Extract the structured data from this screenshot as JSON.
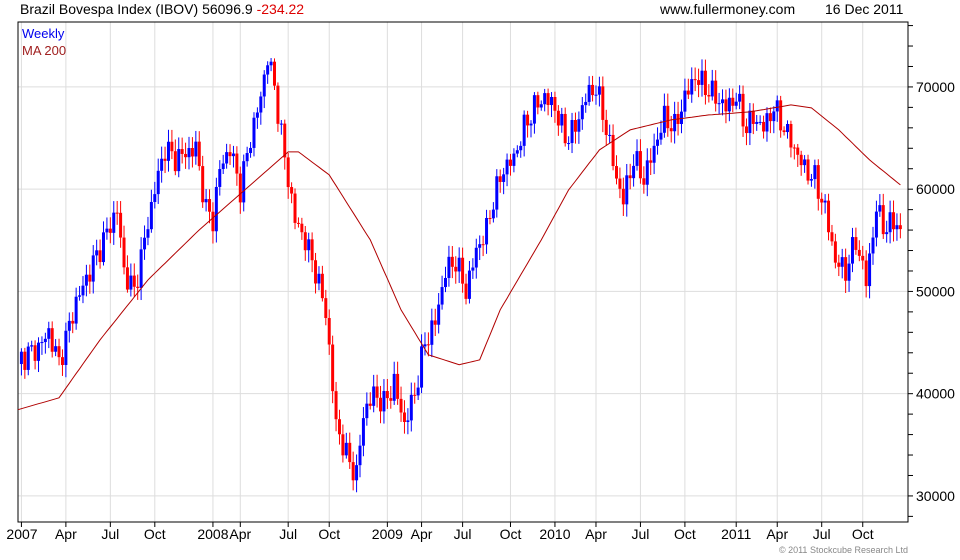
{
  "header": {
    "title": "Brazil Bovespa Index (IBOV)",
    "last": "56096.9",
    "change": "-234.22",
    "site": "www.fullermoney.com",
    "date": "16 Dec 2011"
  },
  "legend": {
    "series": "Weekly",
    "ma": "MA 200"
  },
  "copyright": "© 2011 Stockcube Research Ltd",
  "colors": {
    "up": "#0000ff",
    "down": "#ff0000",
    "ma": "#b00000",
    "grid": "#dddddd"
  },
  "chart_data": {
    "type": "candlestick",
    "title": "Brazil Bovespa Index (IBOV)",
    "frequency": "weekly",
    "ylim": [
      27450,
      76350
    ],
    "yticks": [
      30000,
      40000,
      50000,
      60000,
      70000
    ],
    "ytick_labels": [
      "30000",
      "40000",
      "50000",
      "60000",
      "70000"
    ],
    "xticks": [
      {
        "week": 1,
        "label": "2007"
      },
      {
        "week": 14,
        "label": "Apr"
      },
      {
        "week": 27,
        "label": "Jul"
      },
      {
        "week": 40,
        "label": "Oct"
      },
      {
        "week": 57,
        "label": "2008"
      },
      {
        "week": 65,
        "label": "Apr"
      },
      {
        "week": 79,
        "label": "Jul"
      },
      {
        "week": 91,
        "label": "Oct"
      },
      {
        "week": 108,
        "label": "2009"
      },
      {
        "week": 118,
        "label": "Apr"
      },
      {
        "week": 130,
        "label": "Jul"
      },
      {
        "week": 144,
        "label": "Oct"
      },
      {
        "week": 157,
        "label": "2010"
      },
      {
        "week": 169,
        "label": "Apr"
      },
      {
        "week": 182,
        "label": "Jul"
      },
      {
        "week": 195,
        "label": "Oct"
      },
      {
        "week": 210,
        "label": "2011"
      },
      {
        "week": 222,
        "label": "Apr"
      },
      {
        "week": 235,
        "label": "Jul"
      },
      {
        "week": 247,
        "label": "Oct"
      }
    ],
    "weeks_total": 260,
    "close_anchors": [
      [
        1,
        43500
      ],
      [
        6,
        44500
      ],
      [
        9,
        46000
      ],
      [
        12,
        43000
      ],
      [
        17,
        49000
      ],
      [
        21,
        52000
      ],
      [
        25,
        55000
      ],
      [
        29,
        58000
      ],
      [
        31,
        52000
      ],
      [
        34,
        50000
      ],
      [
        37,
        55000
      ],
      [
        40,
        60000
      ],
      [
        43,
        64000
      ],
      [
        46,
        63000
      ],
      [
        49,
        63500
      ],
      [
        52,
        64000
      ],
      [
        55,
        58000
      ],
      [
        57,
        57000
      ],
      [
        59,
        62000
      ],
      [
        62,
        64000
      ],
      [
        65,
        60000
      ],
      [
        68,
        65000
      ],
      [
        71,
        69000
      ],
      [
        73,
        73000
      ],
      [
        75,
        70000
      ],
      [
        78,
        63000
      ],
      [
        81,
        57000
      ],
      [
        84,
        55000
      ],
      [
        87,
        52000
      ],
      [
        90,
        48000
      ],
      [
        93,
        37000
      ],
      [
        96,
        34000
      ],
      [
        99,
        32000
      ],
      [
        101,
        38000
      ],
      [
        104,
        40000
      ],
      [
        107,
        39000
      ],
      [
        110,
        41000
      ],
      [
        113,
        37000
      ],
      [
        116,
        40000
      ],
      [
        119,
        45000
      ],
      [
        122,
        47000
      ],
      [
        125,
        52000
      ],
      [
        128,
        53000
      ],
      [
        131,
        50000
      ],
      [
        134,
        54000
      ],
      [
        137,
        56000
      ],
      [
        139,
        59000
      ],
      [
        142,
        62000
      ],
      [
        145,
        63000
      ],
      [
        148,
        66000
      ],
      [
        151,
        68000
      ],
      [
        154,
        69000
      ],
      [
        157,
        68000
      ],
      [
        160,
        65000
      ],
      [
        163,
        66000
      ],
      [
        166,
        69000
      ],
      [
        169,
        70000
      ],
      [
        172,
        66000
      ],
      [
        175,
        61000
      ],
      [
        177,
        59000
      ],
      [
        180,
        63000
      ],
      [
        183,
        61000
      ],
      [
        186,
        64000
      ],
      [
        189,
        67000
      ],
      [
        192,
        66000
      ],
      [
        195,
        69000
      ],
      [
        198,
        71000
      ],
      [
        201,
        70000
      ],
      [
        204,
        69000
      ],
      [
        207,
        68000
      ],
      [
        210,
        69000
      ],
      [
        213,
        66000
      ],
      [
        215,
        67000
      ],
      [
        218,
        66000
      ],
      [
        221,
        68000
      ],
      [
        224,
        66000
      ],
      [
        227,
        64000
      ],
      [
        230,
        62000
      ],
      [
        233,
        61000
      ],
      [
        236,
        58000
      ],
      [
        239,
        53000
      ],
      [
        242,
        52000
      ],
      [
        245,
        55000
      ],
      [
        248,
        51000
      ],
      [
        251,
        58000
      ],
      [
        254,
        56000
      ],
      [
        256,
        57000
      ],
      [
        258,
        56097
      ]
    ],
    "ma200_anchors": [
      [
        0,
        38430
      ],
      [
        12,
        39600
      ],
      [
        24,
        45270
      ],
      [
        38,
        51130
      ],
      [
        53,
        56020
      ],
      [
        68,
        60420
      ],
      [
        79,
        63650
      ],
      [
        82,
        63650
      ],
      [
        91,
        61400
      ],
      [
        103,
        55040
      ],
      [
        112,
        48200
      ],
      [
        120,
        43800
      ],
      [
        129,
        42830
      ],
      [
        135,
        43310
      ],
      [
        141,
        48200
      ],
      [
        153,
        55040
      ],
      [
        161,
        59930
      ],
      [
        170,
        63840
      ],
      [
        179,
        65800
      ],
      [
        191,
        66780
      ],
      [
        202,
        67260
      ],
      [
        214,
        67560
      ],
      [
        226,
        68240
      ],
      [
        232,
        67950
      ],
      [
        240,
        65800
      ],
      [
        249,
        62860
      ],
      [
        258,
        60420
      ]
    ]
  }
}
